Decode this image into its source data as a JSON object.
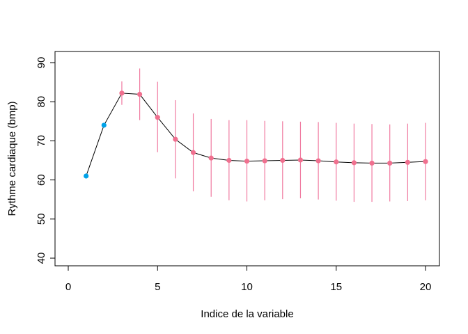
{
  "chart_data": {
    "type": "scatter",
    "xlabel": "Indice de la variable",
    "ylabel": "Rythme cardiaque (bmp)",
    "xlim": [
      0,
      20
    ],
    "ylim": [
      40,
      90
    ],
    "x_ticks": [
      0,
      5,
      10,
      15,
      20
    ],
    "y_ticks": [
      40,
      50,
      60,
      70,
      80,
      90
    ],
    "grid": false,
    "series": [
      {
        "values": [
          {
            "x": 1,
            "y": 61.0,
            "low": 61.0,
            "high": 61.0
          },
          {
            "x": 2,
            "y": 74.0,
            "low": 74.0,
            "high": 74.0
          },
          {
            "x": 3,
            "y": 82.2,
            "low": 79.2,
            "high": 85.2
          },
          {
            "x": 4,
            "y": 81.9,
            "low": 75.3,
            "high": 88.5
          },
          {
            "x": 5,
            "y": 76.0,
            "low": 67.1,
            "high": 85.1
          },
          {
            "x": 6,
            "y": 70.4,
            "low": 60.4,
            "high": 80.4
          },
          {
            "x": 7,
            "y": 67.0,
            "low": 57.1,
            "high": 77.0
          },
          {
            "x": 8,
            "y": 65.6,
            "low": 55.7,
            "high": 75.6
          },
          {
            "x": 9,
            "y": 65.0,
            "low": 54.8,
            "high": 75.3
          },
          {
            "x": 10,
            "y": 64.8,
            "low": 54.5,
            "high": 75.3
          },
          {
            "x": 11,
            "y": 64.9,
            "low": 54.8,
            "high": 75.1
          },
          {
            "x": 12,
            "y": 65.0,
            "low": 55.1,
            "high": 75.0
          },
          {
            "x": 13,
            "y": 65.1,
            "low": 55.3,
            "high": 74.9
          },
          {
            "x": 14,
            "y": 64.9,
            "low": 55.0,
            "high": 74.8
          },
          {
            "x": 15,
            "y": 64.6,
            "low": 54.7,
            "high": 74.6
          },
          {
            "x": 16,
            "y": 64.4,
            "low": 54.4,
            "high": 74.4
          },
          {
            "x": 17,
            "y": 64.3,
            "low": 54.4,
            "high": 74.3
          },
          {
            "x": 18,
            "y": 64.3,
            "low": 54.5,
            "high": 74.2
          },
          {
            "x": 19,
            "y": 64.5,
            "low": 54.6,
            "high": 74.4
          },
          {
            "x": 20,
            "y": 64.7,
            "low": 54.8,
            "high": 74.6
          }
        ]
      }
    ],
    "colors": {
      "line": "#000000",
      "highlight_points": "#00a2e8",
      "points": "#f0708f",
      "error_bars": "#f07aa0"
    },
    "highlight_x": [
      1,
      2
    ]
  }
}
